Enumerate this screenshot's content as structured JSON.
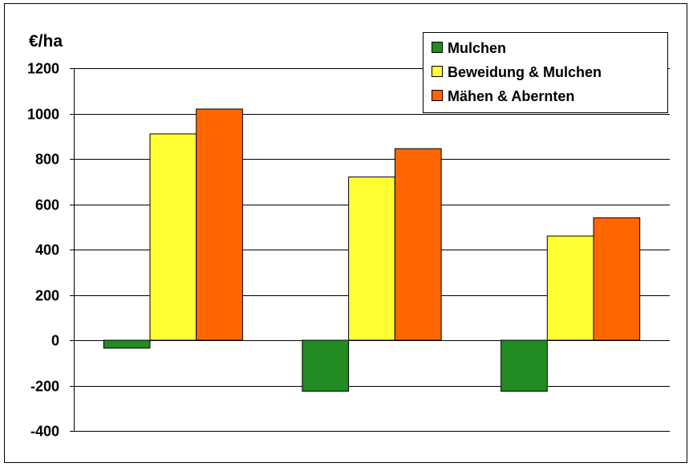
{
  "chart_data": {
    "type": "bar",
    "unit_label": "€/ha",
    "categories": [
      "",
      "",
      ""
    ],
    "series": [
      {
        "name": "Mulchen",
        "color": "#228B22",
        "values": [
          -35,
          -225,
          -225
        ]
      },
      {
        "name": "Beweidung & Mulchen",
        "color": "#FFFF33",
        "values": [
          910,
          720,
          460
        ]
      },
      {
        "name": "Mähen & Abernten",
        "color": "#FF6600",
        "values": [
          1020,
          845,
          540
        ]
      }
    ],
    "ylim": [
      -400,
      1200
    ],
    "yticks": [
      -400,
      -200,
      0,
      200,
      400,
      600,
      800,
      1000,
      1200
    ],
    "ytick_labels": [
      "-400",
      "-200",
      "0",
      "200",
      "400",
      "600",
      "800",
      "1000",
      "1200"
    ],
    "grid": true,
    "legend_position": "top-right",
    "xlabel": "",
    "ylabel": ""
  }
}
